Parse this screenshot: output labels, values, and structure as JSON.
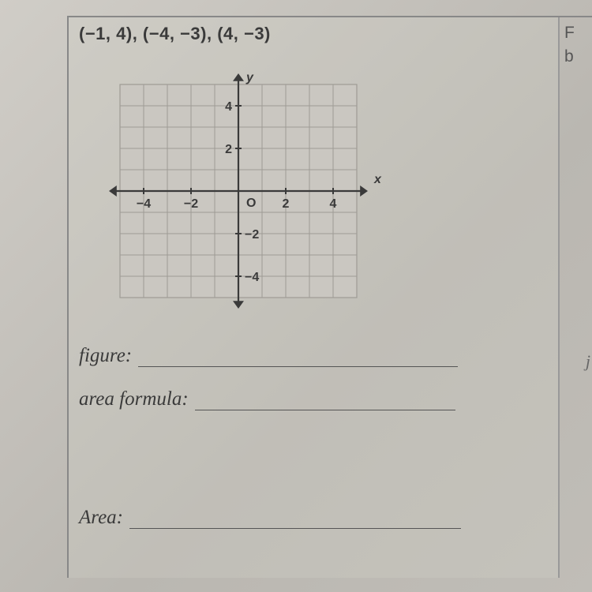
{
  "header_partial": "",
  "coordinates_text": "(−1, 4), (−4, −3), (4, −3)",
  "right_col": {
    "line1": "F",
    "line2": "b"
  },
  "chart": {
    "type": "cartesian-grid",
    "x_range": [
      -5,
      5
    ],
    "y_range": [
      -5,
      5
    ],
    "grid_step": 1,
    "x_ticks": [
      -4,
      -2,
      2,
      4
    ],
    "y_ticks": [
      -4,
      -2,
      2,
      4
    ],
    "origin_label": "O",
    "x_axis_label": "x",
    "y_axis_label": "y",
    "grid_color": "#9e9b95",
    "axis_color": "#3a3a3a",
    "tick_font_size": 16,
    "label_font_size": 16,
    "background": "#cac7c1"
  },
  "fields": {
    "figure_label": "figure:",
    "area_formula_label": "area formula:",
    "area_label": "Area:"
  },
  "side_letter": "j"
}
